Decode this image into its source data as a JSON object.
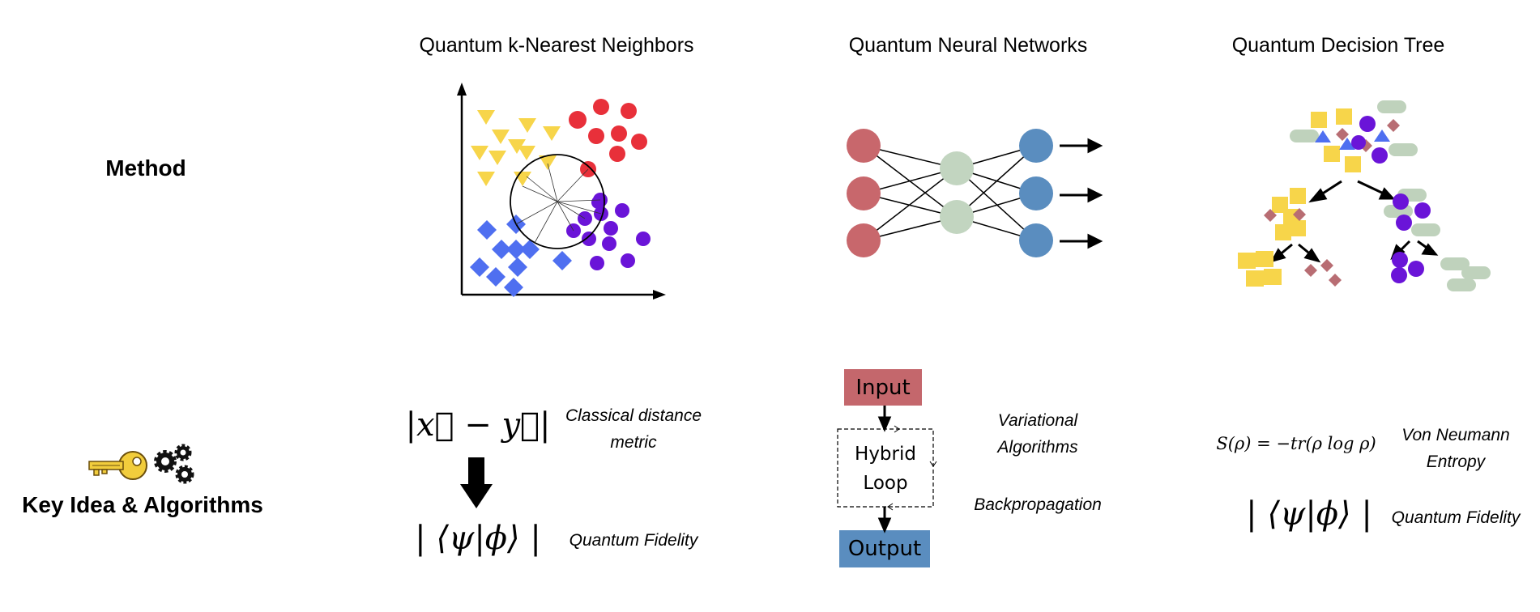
{
  "row_labels": {
    "method": "Method",
    "key_idea": "Key Idea & Algorithms"
  },
  "columns": {
    "knn": {
      "title": "Quantum k-Nearest Neighbors",
      "classical_formula": "|x⃗ − y⃗|",
      "classical_note_line1": "Classical distance",
      "classical_note_line2": "metric",
      "quantum_formula": "| ⟨ψ|ϕ⟩ |",
      "quantum_note": "Quantum Fidelity"
    },
    "qnn": {
      "title": "Quantum Neural Networks",
      "input_label": "Input",
      "loop_line1": "Hybrid",
      "loop_line2": "Loop",
      "output_label": "Output",
      "note1_line1": "Variational",
      "note1_line2": "Algorithms",
      "note2": "Backpropagation"
    },
    "qdt": {
      "title": "Quantum Decision Tree",
      "entropy_formula": "S(ρ) = −tr(ρ log ρ)",
      "entropy_note_line1": "Von Neumann",
      "entropy_note_line2": "Entropy",
      "fidelity_formula": "| ⟨ψ|ϕ⟩ |",
      "fidelity_note": "Quantum Fidelity"
    }
  },
  "icons": [
    "key-icon",
    "gears-icon"
  ],
  "colors": {
    "yellow": "#f7d54a",
    "red": "#e8303a",
    "purple": "#6a14d8",
    "blue": "#4f6ff0",
    "nn_input": "#c8676c",
    "nn_hidden": "#c2d5c0",
    "nn_output": "#5a8dbf",
    "input_box": "#c4676c",
    "output_box": "#5a8dbf",
    "diamond_brown": "#b86d73",
    "pill_green": "#bfd2bc"
  }
}
